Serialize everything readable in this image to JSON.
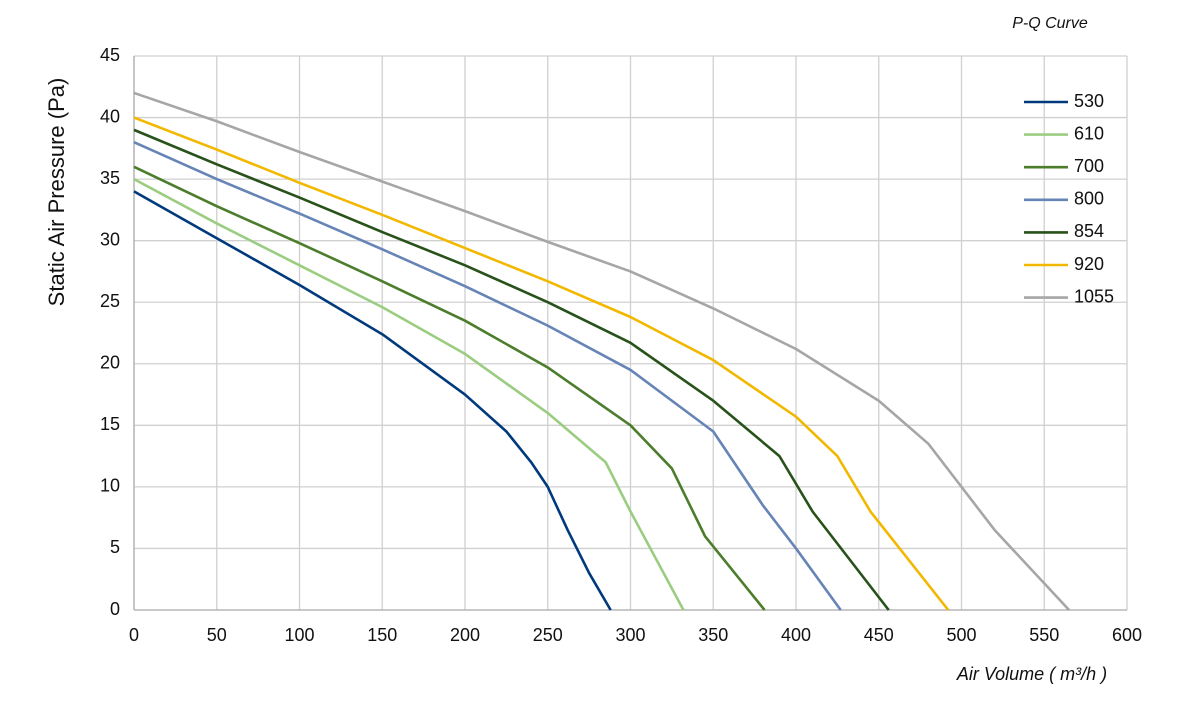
{
  "chart_data": {
    "type": "line",
    "title": "P-Q Curve",
    "x_label": "Air Volume ( m³/h )",
    "y_label": "Static Air Pressure  (Pa)",
    "xlim": [
      0,
      600
    ],
    "xticks": [
      0,
      50,
      100,
      150,
      200,
      250,
      300,
      350,
      400,
      450,
      500,
      550,
      600
    ],
    "ylim": [
      0,
      45
    ],
    "yticks": [
      0,
      5,
      10,
      15,
      20,
      25,
      30,
      35,
      40,
      45
    ],
    "grid": true,
    "legend": "top-right",
    "series": [
      {
        "name": "530",
        "color": "#003a7d",
        "x": [
          0,
          50,
          100,
          150,
          200,
          225,
          240,
          250,
          262,
          275,
          288
        ],
        "values": [
          34,
          30.2,
          26.4,
          22.4,
          17.5,
          14.5,
          12,
          10,
          6.5,
          3,
          0
        ]
      },
      {
        "name": "610",
        "color": "#9bcd81",
        "x": [
          0,
          50,
          100,
          150,
          200,
          250,
          285,
          300,
          310,
          332
        ],
        "values": [
          35,
          31.4,
          28,
          24.6,
          20.8,
          16,
          12,
          8,
          5.5,
          0
        ]
      },
      {
        "name": "700",
        "color": "#4c7d2c",
        "x": [
          0,
          50,
          100,
          150,
          200,
          250,
          300,
          325,
          345,
          381
        ],
        "values": [
          36,
          32.8,
          29.8,
          26.7,
          23.5,
          19.7,
          15,
          11.5,
          6,
          0
        ]
      },
      {
        "name": "800",
        "color": "#6684b6",
        "x": [
          0,
          50,
          100,
          150,
          200,
          250,
          300,
          350,
          380,
          400,
          427
        ],
        "values": [
          38,
          35,
          32.2,
          29.3,
          26.3,
          23.1,
          19.5,
          14.5,
          8.5,
          5,
          0
        ]
      },
      {
        "name": "854",
        "color": "#28521a",
        "x": [
          0,
          50,
          100,
          150,
          200,
          250,
          300,
          350,
          390,
          410,
          456
        ],
        "values": [
          39,
          36.2,
          33.5,
          30.7,
          28,
          25,
          21.7,
          17,
          12.5,
          8,
          0
        ]
      },
      {
        "name": "920",
        "color": "#f2b800",
        "x": [
          0,
          50,
          100,
          150,
          200,
          250,
          300,
          350,
          400,
          425,
          445,
          492
        ],
        "values": [
          40,
          37.4,
          34.7,
          32.1,
          29.4,
          26.7,
          23.8,
          20.3,
          15.7,
          12.5,
          8,
          0
        ]
      },
      {
        "name": "1055",
        "color": "#a6a6a6",
        "x": [
          0,
          50,
          100,
          150,
          200,
          250,
          300,
          350,
          400,
          450,
          480,
          500,
          520,
          565
        ],
        "values": [
          42,
          39.7,
          37.2,
          34.8,
          32.4,
          29.9,
          27.5,
          24.5,
          21.2,
          17,
          13.5,
          10,
          6.5,
          0
        ]
      }
    ]
  }
}
